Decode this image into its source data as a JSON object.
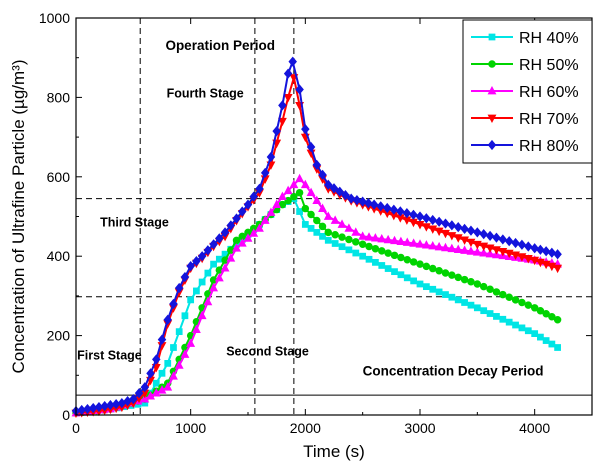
{
  "chart_data": {
    "type": "line",
    "xlabel": "Time (s)",
    "ylabel": "Concentration of Ultrafine Particle (µg/m³)",
    "xlim": [
      0,
      4500
    ],
    "ylim": [
      0,
      1000
    ],
    "x_ticks": [
      0,
      1000,
      2000,
      3000,
      4000
    ],
    "y_ticks": [
      0,
      200,
      400,
      600,
      800,
      1000
    ],
    "grid": false,
    "legend_position": "top-right",
    "annotations": [
      {
        "text": "Operation Period",
        "x": 780,
        "y": 920,
        "size": "big"
      },
      {
        "text": "Fourth Stage",
        "x": 790,
        "y": 800,
        "size": "normal"
      },
      {
        "text": "Third Stage",
        "x": 210,
        "y": 475,
        "size": "normal"
      },
      {
        "text": "First Stage",
        "x": 10,
        "y": 140,
        "size": "normal"
      },
      {
        "text": "Second Stage",
        "x": 1310,
        "y": 150,
        "size": "normal"
      },
      {
        "text": "Concentration Decay Period",
        "x": 2500,
        "y": 100,
        "size": "big"
      }
    ],
    "reference_lines": {
      "vertical": [
        560,
        1560,
        1900
      ],
      "horizontal_dashed": [
        545,
        298
      ],
      "horizontal_solid": [
        50
      ]
    },
    "series": [
      {
        "name": "RH 40%",
        "color": "#00e5e5",
        "marker": "square",
        "x": [
          0,
          300,
          600,
          800,
          1000,
          1200,
          1400,
          1600,
          1800,
          1900,
          2000,
          2200,
          2500,
          3000,
          3500,
          4000,
          4200
        ],
        "y": [
          5,
          15,
          30,
          130,
          290,
          380,
          430,
          480,
          530,
          545,
          480,
          440,
          400,
          330,
          270,
          205,
          170
        ]
      },
      {
        "name": "RH 50%",
        "color": "#00d400",
        "marker": "circle",
        "x": [
          0,
          300,
          600,
          800,
          1000,
          1200,
          1400,
          1600,
          1800,
          1900,
          1950,
          2000,
          2200,
          2500,
          3000,
          3500,
          4000,
          4200
        ],
        "y": [
          5,
          15,
          40,
          80,
          200,
          340,
          440,
          480,
          530,
          550,
          560,
          520,
          460,
          430,
          380,
          330,
          270,
          240
        ]
      },
      {
        "name": "RH 60%",
        "color": "#ff00ff",
        "marker": "triangle-up",
        "x": [
          0,
          300,
          600,
          800,
          1000,
          1200,
          1400,
          1600,
          1800,
          1900,
          1950,
          2000,
          2200,
          2500,
          3000,
          3500,
          4000,
          4200
        ],
        "y": [
          5,
          15,
          40,
          70,
          180,
          320,
          420,
          470,
          550,
          580,
          595,
          580,
          500,
          450,
          430,
          410,
          390,
          380
        ]
      },
      {
        "name": "RH 70%",
        "color": "#ff0000",
        "marker": "triangle-down",
        "x": [
          0,
          200,
          400,
          500,
          600,
          700,
          800,
          900,
          1000,
          1100,
          1200,
          1300,
          1400,
          1500,
          1600,
          1700,
          1800,
          1850,
          1900,
          1950,
          2000,
          2100,
          2200,
          2400,
          2600,
          3000,
          3500,
          4000,
          4200
        ],
        "y": [
          5,
          10,
          20,
          30,
          55,
          120,
          230,
          310,
          370,
          395,
          425,
          450,
          490,
          525,
          560,
          630,
          740,
          800,
          850,
          780,
          700,
          620,
          570,
          540,
          520,
          480,
          430,
          390,
          370
        ]
      },
      {
        "name": "RH 80%",
        "color": "#1414dc",
        "marker": "diamond",
        "x": [
          0,
          200,
          400,
          500,
          600,
          700,
          800,
          900,
          1000,
          1100,
          1200,
          1300,
          1400,
          1500,
          1600,
          1700,
          1800,
          1850,
          1890,
          1950,
          2000,
          2100,
          2200,
          2400,
          2600,
          3000,
          3500,
          4000,
          4200
        ],
        "y": [
          10,
          20,
          30,
          40,
          70,
          140,
          240,
          320,
          375,
          400,
          430,
          460,
          495,
          530,
          570,
          650,
          780,
          860,
          890,
          820,
          720,
          630,
          580,
          545,
          530,
          500,
          460,
          420,
          405
        ]
      }
    ]
  }
}
